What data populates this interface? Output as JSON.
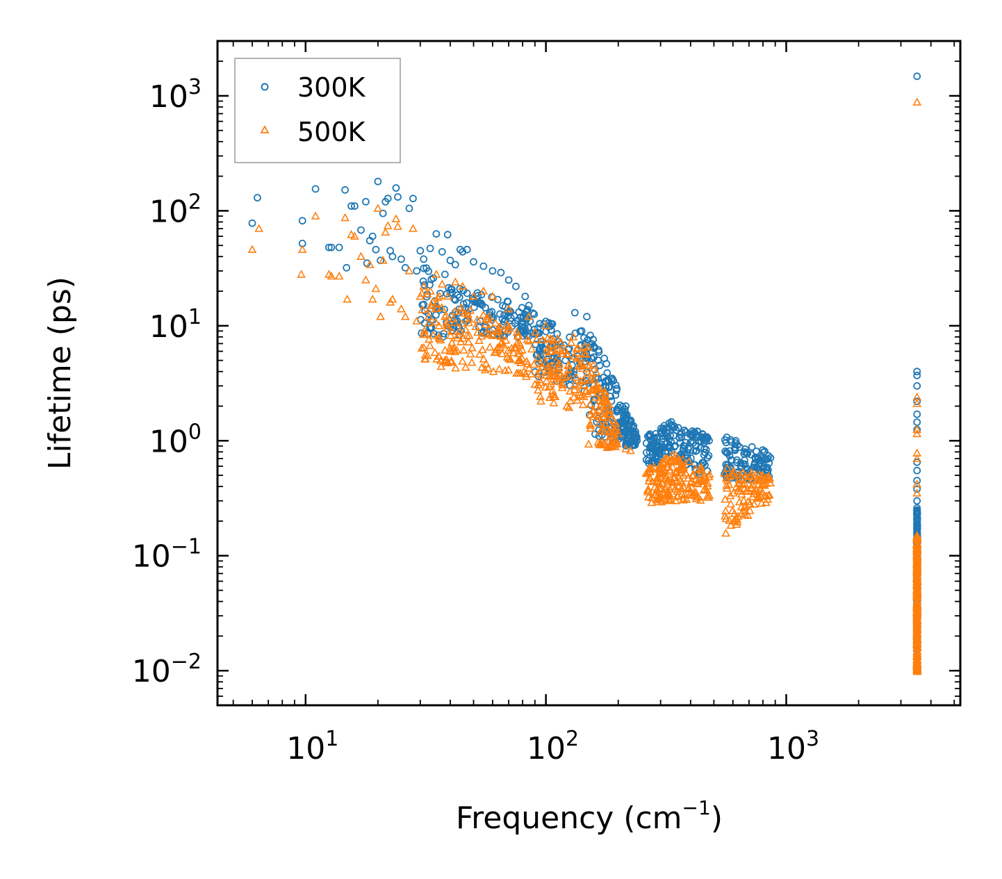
{
  "chart_data": {
    "type": "scatter",
    "xscale": "log",
    "yscale": "log",
    "xlim": [
      4.3,
      5300
    ],
    "ylim": [
      0.005,
      3000
    ],
    "xlabel": "Frequency (cm",
    "xlabel_sup": "−1",
    "xlabel_end": ")",
    "ylabel": "Lifetime (ps)",
    "x_ticks": [
      {
        "value": 10,
        "base": "10",
        "exp": "1"
      },
      {
        "value": 100,
        "base": "10",
        "exp": "2"
      },
      {
        "value": 1000,
        "base": "10",
        "exp": "3"
      }
    ],
    "y_ticks": [
      {
        "value": 0.01,
        "base": "10",
        "exp": "−2"
      },
      {
        "value": 0.1,
        "base": "10",
        "exp": "−1"
      },
      {
        "value": 1,
        "base": "10",
        "exp": "0"
      },
      {
        "value": 10,
        "base": "10",
        "exp": "1"
      },
      {
        "value": 100,
        "base": "10",
        "exp": "2"
      },
      {
        "value": 1000,
        "base": "10",
        "exp": "3"
      }
    ],
    "legend": {
      "position": "top-left"
    },
    "series": [
      {
        "name": "300K",
        "marker": "circle",
        "color": "#1f77b4",
        "points": [
          [
            6.0,
            78
          ],
          [
            6.3,
            130
          ],
          [
            9.7,
            82
          ],
          [
            9.7,
            52
          ],
          [
            11.0,
            155
          ],
          [
            12.5,
            48
          ],
          [
            12.8,
            48
          ],
          [
            13.8,
            48
          ],
          [
            14.6,
            152
          ],
          [
            14.8,
            32
          ],
          [
            15.5,
            110
          ],
          [
            16.0,
            110
          ],
          [
            17.0,
            68
          ],
          [
            17.8,
            120
          ],
          [
            18.0,
            35
          ],
          [
            18.5,
            55
          ],
          [
            19.0,
            60
          ],
          [
            19.6,
            46
          ],
          [
            20.0,
            180
          ],
          [
            20.5,
            37
          ],
          [
            21.0,
            95
          ],
          [
            21.5,
            120
          ],
          [
            22.0,
            128
          ],
          [
            22.5,
            45
          ],
          [
            23.0,
            40
          ],
          [
            23.8,
            158
          ],
          [
            24.2,
            132
          ],
          [
            25.0,
            38
          ],
          [
            26.0,
            32
          ],
          [
            27.0,
            105
          ],
          [
            28.0,
            128
          ],
          [
            29.0,
            30
          ],
          [
            30.0,
            45
          ],
          [
            31.0,
            38
          ],
          [
            33.0,
            47
          ],
          [
            34.0,
            26
          ],
          [
            35.0,
            63
          ],
          [
            37.0,
            44
          ],
          [
            38.0,
            28
          ],
          [
            39.0,
            62
          ],
          [
            40.0,
            37
          ],
          [
            42.0,
            34
          ],
          [
            44.0,
            46
          ],
          [
            45.0,
            44
          ],
          [
            47.0,
            46
          ],
          [
            50.0,
            36
          ],
          [
            55.0,
            33
          ],
          [
            60.0,
            30
          ],
          [
            65.0,
            29
          ],
          [
            70.0,
            25
          ],
          [
            75.0,
            22
          ],
          [
            82.0,
            18
          ],
          [
            85.0,
            15
          ],
          [
            132.0,
            13
          ],
          [
            148.0,
            12
          ],
          [
            175.0,
            5.2
          ],
          [
            195.0,
            2.5
          ],
          [
            215.0,
            2.0
          ],
          [
            225.0,
            1.5
          ],
          [
            235.0,
            1.15
          ],
          [
            3500,
            1480
          ],
          [
            3500,
            4.0
          ],
          [
            3500,
            3.7
          ],
          [
            3500,
            3.0
          ],
          [
            3500,
            2.2
          ],
          [
            3500,
            1.7
          ],
          [
            3500,
            1.45
          ],
          [
            3500,
            1.25
          ],
          [
            3500,
            0.65
          ],
          [
            3500,
            0.55
          ],
          [
            3500,
            0.45
          ],
          [
            3500,
            0.38
          ],
          [
            3500,
            0.3
          ],
          [
            3500,
            0.26
          ]
        ],
        "bands": [
          {
            "x": [
              30,
              90
            ],
            "ymin_start": 8,
            "ymin_end": 8,
            "ymax_start": 35,
            "ymax_end": 13
          },
          {
            "x": [
              90,
              150
            ],
            "ymin_start": 3.5,
            "ymin_end": 2.5,
            "ymax_start": 12,
            "ymax_end": 9
          },
          {
            "x": [
              150,
              200
            ],
            "ymin_start": 1.2,
            "ymin_end": 0.9,
            "ymax_start": 11,
            "ymax_end": 3
          },
          {
            "x": [
              200,
              240
            ],
            "ymin_start": 0.9,
            "ymin_end": 0.9,
            "ymax_start": 2.4,
            "ymax_end": 1.2
          },
          {
            "x": [
              260,
              330
            ],
            "ymin_start": 0.6,
            "ymin_end": 0.7,
            "ymax_start": 1.1,
            "ymax_end": 1.45
          },
          {
            "x": [
              330,
              480
            ],
            "ymin_start": 0.75,
            "ymin_end": 0.45,
            "ymax_start": 1.5,
            "ymax_end": 1.1
          },
          {
            "x": [
              550,
              860
            ],
            "ymin_start": 0.45,
            "ymin_end": 0.45,
            "ymax_start": 1.1,
            "ymax_end": 0.8
          },
          {
            "x": [
              3495,
              3510
            ],
            "ymin_start": 0.015,
            "ymin_end": 0.015,
            "ymax_start": 0.25,
            "ymax_end": 0.25
          }
        ]
      },
      {
        "name": "500K",
        "marker": "triangle",
        "color": "#ff7f0e",
        "points": [
          [
            6.0,
            46
          ],
          [
            6.4,
            70
          ],
          [
            9.6,
            28
          ],
          [
            9.7,
            46
          ],
          [
            11.0,
            90
          ],
          [
            12.5,
            28
          ],
          [
            12.8,
            27
          ],
          [
            13.8,
            27
          ],
          [
            14.6,
            87
          ],
          [
            14.9,
            17
          ],
          [
            15.5,
            62
          ],
          [
            16.0,
            60
          ],
          [
            17.0,
            40
          ],
          [
            17.8,
            25
          ],
          [
            18.5,
            34
          ],
          [
            19.0,
            17
          ],
          [
            19.6,
            21
          ],
          [
            20.0,
            105
          ],
          [
            20.5,
            12
          ],
          [
            21.0,
            37
          ],
          [
            21.5,
            65
          ],
          [
            22.0,
            74
          ],
          [
            22.5,
            16
          ],
          [
            23.0,
            17
          ],
          [
            23.8,
            85
          ],
          [
            24.2,
            73
          ],
          [
            25.0,
            14
          ],
          [
            26.0,
            12
          ],
          [
            27.0,
            30
          ],
          [
            28.0,
            70
          ],
          [
            29.0,
            11
          ],
          [
            30.0,
            18
          ],
          [
            31.0,
            22
          ],
          [
            33.0,
            14
          ],
          [
            35.0,
            28
          ],
          [
            37.0,
            23
          ],
          [
            38.0,
            12
          ],
          [
            39.0,
            18
          ],
          [
            42.0,
            24
          ],
          [
            45.0,
            22
          ],
          [
            50.0,
            18
          ],
          [
            55.0,
            20
          ],
          [
            60.0,
            18
          ],
          [
            70.0,
            14
          ],
          [
            85.0,
            12
          ],
          [
            100.0,
            10
          ],
          [
            130.0,
            8
          ],
          [
            150.0,
            6.5
          ],
          [
            180.0,
            2.2
          ],
          [
            195.0,
            0.95
          ],
          [
            215.0,
            0.85
          ],
          [
            225.0,
            0.82
          ],
          [
            3500,
            880
          ],
          [
            3500,
            2.4
          ],
          [
            3500,
            2.1
          ],
          [
            3500,
            1.25
          ],
          [
            3500,
            1.15
          ],
          [
            3500,
            0.78
          ],
          [
            3500,
            0.7
          ],
          [
            3500,
            0.42
          ],
          [
            3500,
            0.35
          ]
        ],
        "bands": [
          {
            "x": [
              30,
              90
            ],
            "ymin_start": 4.5,
            "ymin_end": 3.5,
            "ymax_start": 22,
            "ymax_end": 8
          },
          {
            "x": [
              90,
              150
            ],
            "ymin_start": 2.2,
            "ymin_end": 1.8,
            "ymax_start": 9,
            "ymax_end": 6.5
          },
          {
            "x": [
              150,
              200
            ],
            "ymin_start": 0.9,
            "ymin_end": 0.8,
            "ymax_start": 6,
            "ymax_end": 1.5
          },
          {
            "x": [
              260,
              330
            ],
            "ymin_start": 0.28,
            "ymin_end": 0.3,
            "ymax_start": 0.55,
            "ymax_end": 0.75
          },
          {
            "x": [
              330,
              480
            ],
            "ymin_start": 0.3,
            "ymin_end": 0.3,
            "ymax_start": 0.8,
            "ymax_end": 0.55
          },
          {
            "x": [
              550,
              860
            ],
            "ymin_start": 0.15,
            "ymin_end": 0.3,
            "ymax_start": 0.6,
            "ymax_end": 0.5
          },
          {
            "x": [
              3495,
              3510
            ],
            "ymin_start": 0.0098,
            "ymin_end": 0.0098,
            "ymax_start": 0.15,
            "ymax_end": 0.15
          }
        ]
      }
    ]
  }
}
